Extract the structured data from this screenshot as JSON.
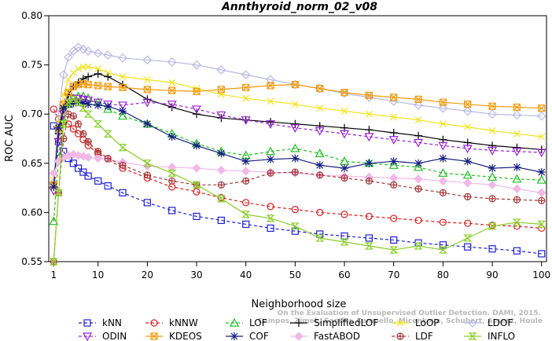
{
  "chart_data": {
    "type": "line",
    "title": "Annthyroid_norm_02_v08",
    "xlabel": "Neighborhood size",
    "ylabel": "ROC AUC",
    "xlim": [
      0,
      101
    ],
    "ylim": [
      0.55,
      0.8
    ],
    "xticks": [
      1,
      10,
      20,
      30,
      40,
      50,
      60,
      70,
      80,
      90,
      100
    ],
    "yticks": [
      "0.55",
      "0.60",
      "0.65",
      "0.70",
      "0.75",
      "0.80"
    ],
    "grid": false,
    "legend_position": "bottom",
    "watermark": [
      "Campos, Zimek, Sander, Campello, Micenkova, Schubert, Assent, Houle",
      "On the Evaluation of Unsupervised Outlier Detection. DAMI, 2015."
    ],
    "x": [
      1,
      2,
      3,
      4,
      5,
      6,
      7,
      8,
      10,
      12,
      15,
      20,
      25,
      30,
      35,
      40,
      45,
      50,
      55,
      60,
      65,
      70,
      75,
      80,
      85,
      90,
      95,
      100
    ],
    "series": [
      {
        "name": "kNN",
        "color": "#1f1fd6",
        "marker": "square",
        "dash": "4,3",
        "values": [
          0.688,
          0.672,
          0.662,
          0.655,
          0.65,
          0.645,
          0.641,
          0.637,
          0.632,
          0.627,
          0.62,
          0.61,
          0.602,
          0.596,
          0.592,
          0.588,
          0.584,
          0.581,
          0.578,
          0.576,
          0.574,
          0.572,
          0.569,
          0.567,
          0.565,
          0.563,
          0.561,
          0.558
        ]
      },
      {
        "name": "kNNW",
        "color": "#d62020",
        "marker": "circle",
        "dash": "4,3",
        "values": [
          0.705,
          0.695,
          0.692,
          0.69,
          0.685,
          0.68,
          0.674,
          0.668,
          0.66,
          0.654,
          0.645,
          0.635,
          0.626,
          0.621,
          0.615,
          0.61,
          0.606,
          0.603,
          0.6,
          0.598,
          0.596,
          0.594,
          0.592,
          0.59,
          0.589,
          0.587,
          0.586,
          0.584
        ]
      },
      {
        "name": "LOF",
        "color": "#1fbf1f",
        "marker": "triangle-up",
        "dash": "4,3",
        "values": [
          0.591,
          0.655,
          0.694,
          0.71,
          0.716,
          0.718,
          0.718,
          0.716,
          0.712,
          0.705,
          0.698,
          0.69,
          0.68,
          0.67,
          0.662,
          0.658,
          0.662,
          0.665,
          0.66,
          0.652,
          0.65,
          0.648,
          0.646,
          0.64,
          0.638,
          0.636,
          0.634,
          0.633
        ]
      },
      {
        "name": "SimplifiedLOF",
        "color": "#000000",
        "marker": "plus",
        "dash": "",
        "values": [
          0.63,
          0.68,
          0.705,
          0.72,
          0.728,
          0.732,
          0.736,
          0.738,
          0.741,
          0.738,
          0.73,
          0.715,
          0.707,
          0.7,
          0.696,
          0.694,
          0.692,
          0.69,
          0.688,
          0.686,
          0.684,
          0.681,
          0.678,
          0.674,
          0.671,
          0.668,
          0.666,
          0.664
        ]
      },
      {
        "name": "LoOP",
        "color": "#f2e21a",
        "marker": "cross",
        "dash": "",
        "values": [
          0.633,
          0.69,
          0.72,
          0.735,
          0.742,
          0.746,
          0.748,
          0.748,
          0.746,
          0.742,
          0.738,
          0.735,
          0.732,
          0.726,
          0.72,
          0.716,
          0.713,
          0.71,
          0.706,
          0.703,
          0.7,
          0.697,
          0.694,
          0.69,
          0.687,
          0.683,
          0.68,
          0.677
        ]
      },
      {
        "name": "LDOF",
        "color": "#b8b8e6",
        "marker": "diamond",
        "dash": "",
        "values": [
          0.63,
          0.7,
          0.74,
          0.758,
          0.764,
          0.768,
          0.766,
          0.764,
          0.762,
          0.76,
          0.757,
          0.755,
          0.753,
          0.75,
          0.745,
          0.74,
          0.735,
          0.73,
          0.726,
          0.721,
          0.717,
          0.713,
          0.709,
          0.706,
          0.703,
          0.7,
          0.699,
          0.698
        ]
      },
      {
        "name": "ODIN",
        "color": "#9a1fd6",
        "marker": "triangle-down",
        "dash": "4,3",
        "values": [
          0.622,
          0.672,
          0.7,
          0.712,
          0.716,
          0.716,
          0.715,
          0.714,
          0.712,
          0.71,
          0.709,
          0.712,
          0.71,
          0.705,
          0.699,
          0.694,
          0.69,
          0.686,
          0.683,
          0.68,
          0.677,
          0.674,
          0.671,
          0.668,
          0.665,
          0.663,
          0.662,
          0.661
        ]
      },
      {
        "name": "KDEOS",
        "color": "#f29a0c",
        "marker": "square-x",
        "dash": "",
        "values": [
          0.628,
          0.685,
          0.71,
          0.722,
          0.728,
          0.73,
          0.731,
          0.73,
          0.729,
          0.728,
          0.727,
          0.725,
          0.724,
          0.723,
          0.725,
          0.727,
          0.729,
          0.73,
          0.726,
          0.722,
          0.719,
          0.717,
          0.715,
          0.712,
          0.71,
          0.708,
          0.707,
          0.706
        ]
      },
      {
        "name": "COF",
        "color": "#141f80",
        "marker": "star",
        "dash": "",
        "values": [
          0.626,
          0.686,
          0.706,
          0.71,
          0.711,
          0.712,
          0.711,
          0.71,
          0.709,
          0.708,
          0.703,
          0.69,
          0.677,
          0.668,
          0.66,
          0.652,
          0.654,
          0.655,
          0.648,
          0.645,
          0.65,
          0.652,
          0.65,
          0.655,
          0.652,
          0.645,
          0.646,
          0.641
        ]
      },
      {
        "name": "FastABOD",
        "color": "#f2b8e6",
        "marker": "diamond-filled",
        "dash": "",
        "values": [
          0.64,
          0.652,
          0.656,
          0.658,
          0.659,
          0.658,
          0.657,
          0.656,
          0.655,
          0.654,
          0.651,
          0.647,
          0.646,
          0.645,
          0.643,
          0.642,
          0.641,
          0.64,
          0.638,
          0.637,
          0.636,
          0.635,
          0.634,
          0.632,
          0.63,
          0.628,
          0.624,
          0.62
        ]
      },
      {
        "name": "LDF",
        "color": "#a63a3a",
        "marker": "circle-plus",
        "dash": "4,3",
        "values": [
          0.55,
          0.62,
          0.675,
          0.7,
          0.698,
          0.69,
          0.68,
          0.672,
          0.662,
          0.655,
          0.648,
          0.638,
          0.632,
          0.628,
          0.628,
          0.632,
          0.64,
          0.641,
          0.638,
          0.635,
          0.632,
          0.628,
          0.624,
          0.62,
          0.616,
          0.614,
          0.613,
          0.612
        ]
      },
      {
        "name": "INFLO",
        "color": "#8ace2a",
        "marker": "hourglass",
        "dash": "",
        "values": [
          0.55,
          0.62,
          0.69,
          0.712,
          0.715,
          0.712,
          0.706,
          0.7,
          0.69,
          0.68,
          0.666,
          0.65,
          0.64,
          0.628,
          0.614,
          0.598,
          0.594,
          0.586,
          0.574,
          0.57,
          0.566,
          0.562,
          0.566,
          0.562,
          0.574,
          0.586,
          0.59,
          0.588
        ]
      }
    ]
  }
}
